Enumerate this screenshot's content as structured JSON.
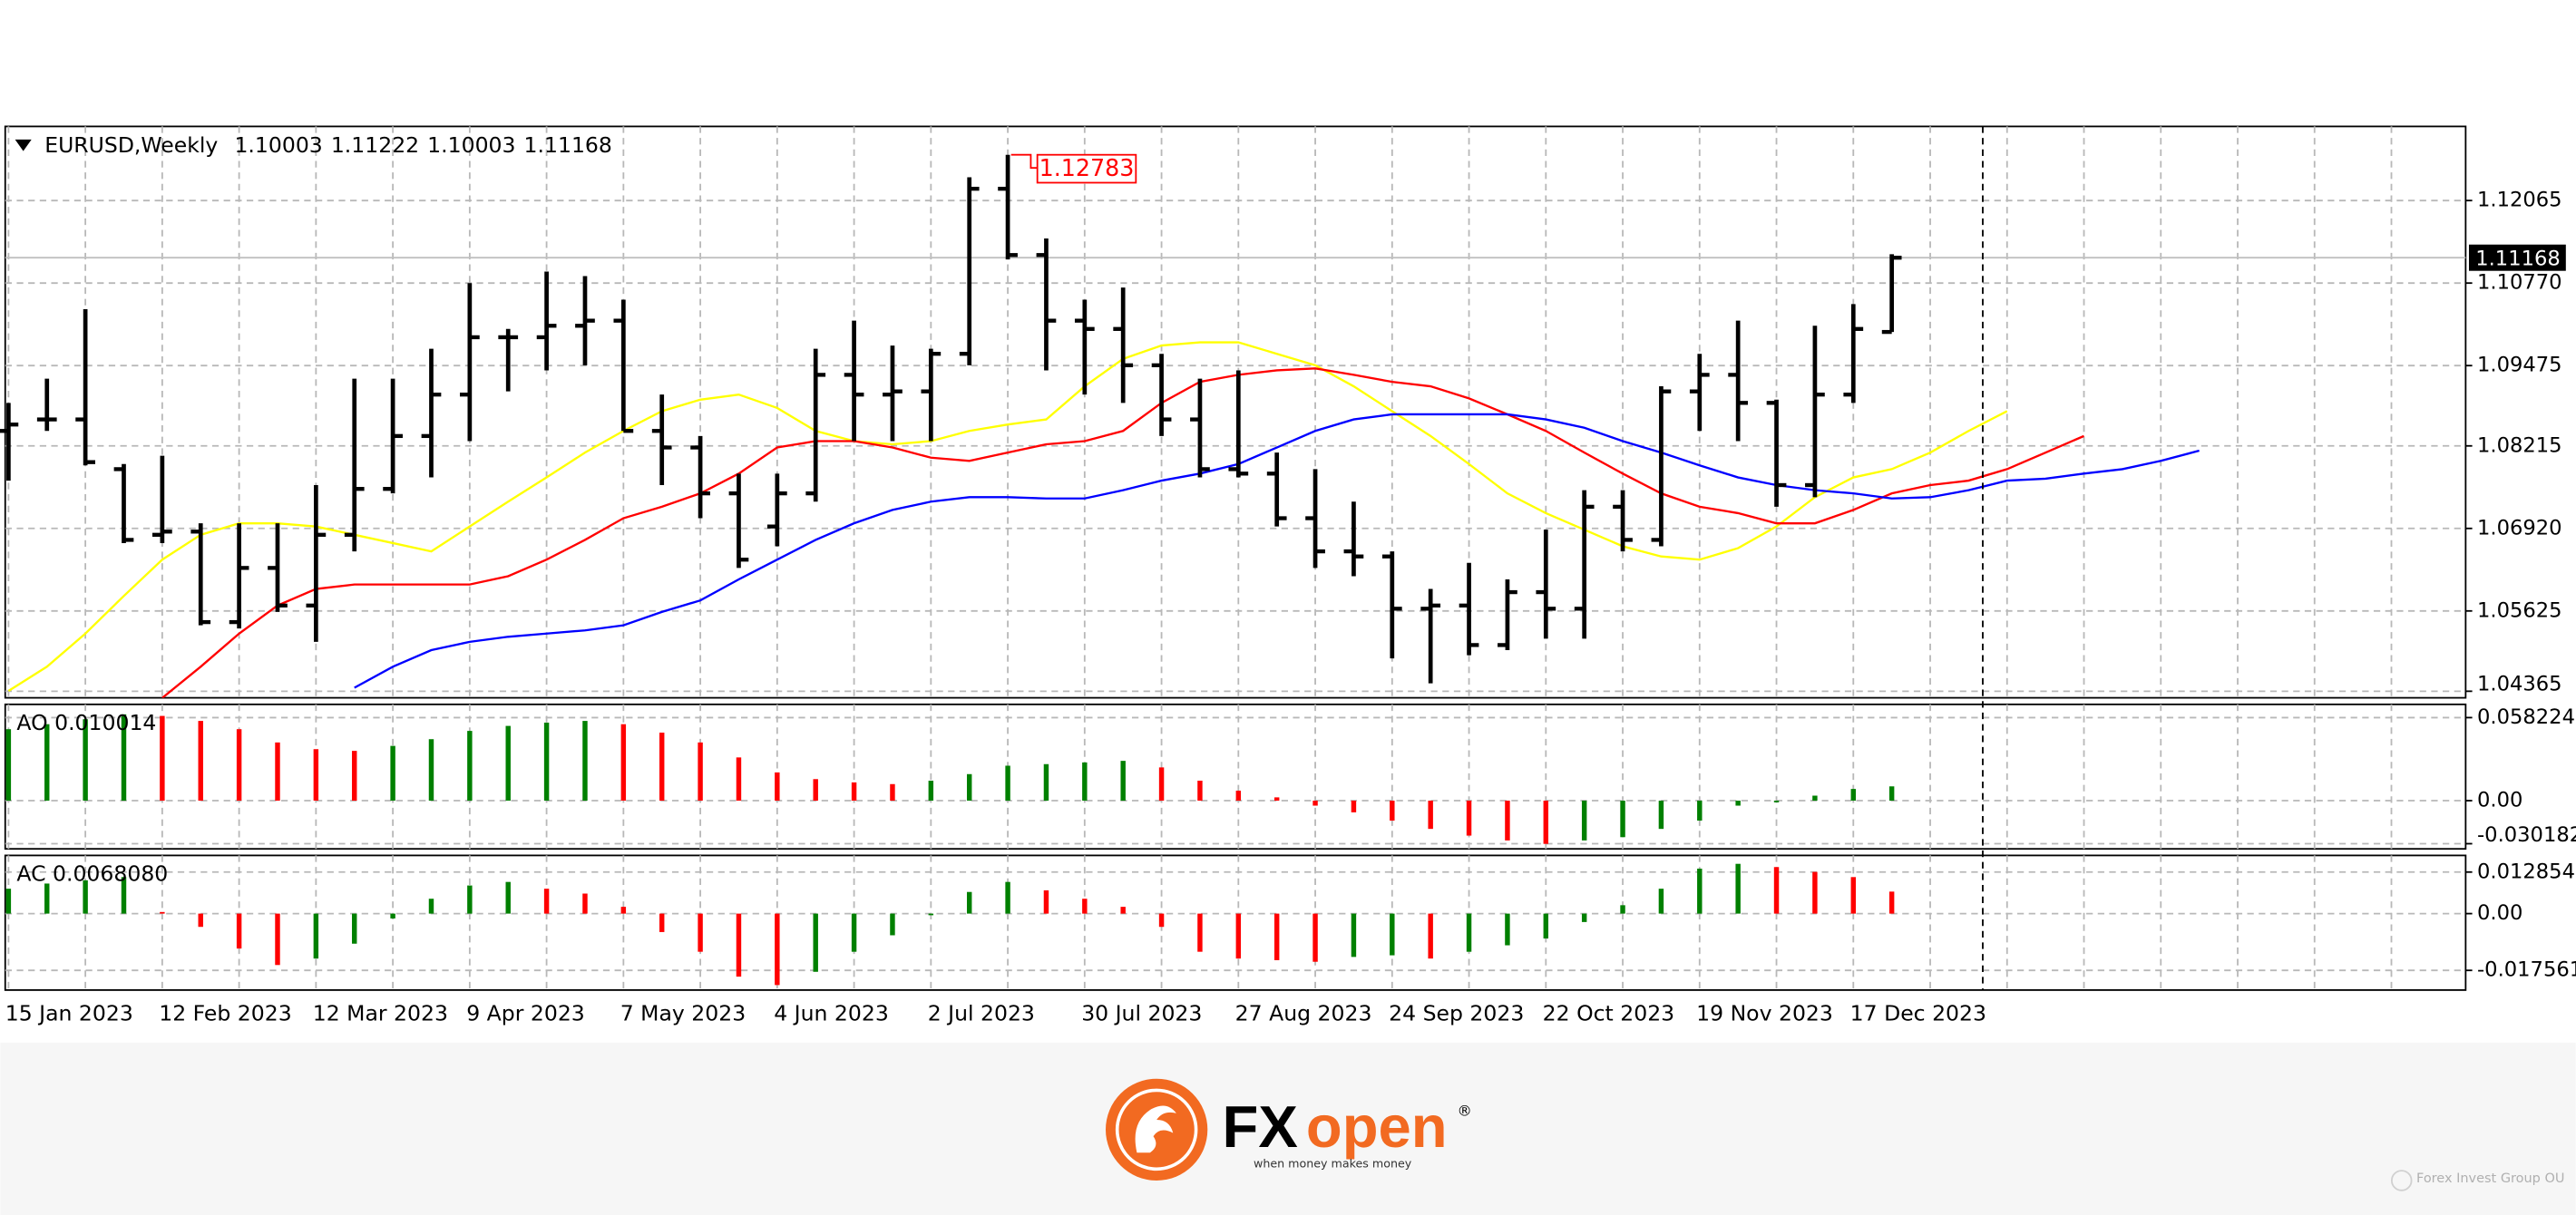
{
  "chart_data": [
    {
      "type": "ohlc",
      "title": "EURUSD,Weekly",
      "color": "#000000",
      "grid": true,
      "ylim": [
        1.04262,
        1.13228
      ],
      "yticks": [
        1.12065,
        {
          "value": 1.1077,
          "label": "1.10770"
        },
        1.09475,
        1.08215,
        {
          "value": 1.0692,
          "label": "1.06920"
        },
        1.05625,
        1.04365
      ],
      "categories": [
        "15 Jan 2023",
        null,
        null,
        null,
        "12 Feb 2023",
        null,
        null,
        null,
        "12 Mar 2023",
        null,
        null,
        null,
        "9 Apr 2023",
        null,
        null,
        null,
        "7 May 2023",
        null,
        null,
        null,
        "4 Jun 2023",
        null,
        null,
        null,
        "2 Jul 2023",
        null,
        null,
        null,
        "30 Jul 2023",
        null,
        null,
        null,
        "27 Aug 2023",
        null,
        null,
        null,
        "24 Sep 2023",
        null,
        null,
        null,
        "22 Oct 2023",
        null,
        null,
        null,
        "19 Nov 2023",
        null,
        null,
        null,
        "17 Dec 2023",
        null,
        null,
        null,
        null,
        null,
        null,
        null,
        null,
        null
      ],
      "open": [
        1.0845,
        1.0863,
        1.0863,
        1.0785,
        1.0682,
        1.0687,
        1.0545,
        1.063,
        1.0571,
        1.0682,
        1.0754,
        1.0837,
        1.0902,
        1.0992,
        1.0992,
        1.101,
        1.1018,
        1.0845,
        1.0819,
        1.0747,
        1.0695,
        1.0747,
        1.0933,
        1.0902,
        1.0907,
        1.0966,
        1.1225,
        1.1121,
        1.1018,
        1.1005,
        1.0948,
        1.0863,
        1.0785,
        1.0778,
        1.0708,
        1.0656,
        1.0648,
        1.0566,
        1.0571,
        1.0509,
        1.0592,
        1.0566,
        1.0726,
        1.0674,
        1.0907,
        1.0933,
        1.0889,
        1.076,
        1.0902,
        1.10003,
        null,
        null,
        null,
        null,
        null,
        null,
        null,
        null
      ],
      "high": [
        1.0889,
        1.0927,
        1.1036,
        1.0793,
        1.0806,
        1.07,
        1.07,
        1.07,
        1.076,
        1.0927,
        1.0927,
        1.0974,
        1.1077,
        1.1005,
        1.1095,
        1.1088,
        1.1051,
        1.0902,
        1.0837,
        1.0778,
        1.0778,
        1.0974,
        1.1018,
        1.0979,
        1.0974,
        1.1243,
        1.12783,
        1.1147,
        1.1051,
        1.107,
        1.0966,
        1.0927,
        1.094,
        1.0811,
        1.0785,
        1.0734,
        1.0656,
        1.0597,
        1.0638,
        1.0612,
        1.069,
        1.0752,
        1.0752,
        1.0915,
        1.0966,
        1.1018,
        1.0894,
        1.101,
        1.1044,
        1.11222,
        null,
        null,
        null,
        null,
        null,
        null,
        null,
        null
      ],
      "low": [
        1.0767,
        1.0845,
        1.0791,
        1.0669,
        1.0669,
        1.054,
        1.0535,
        1.0561,
        1.0514,
        1.0656,
        1.0747,
        1.0772,
        1.0829,
        1.0907,
        1.094,
        1.0948,
        1.0845,
        1.076,
        1.0708,
        1.063,
        1.0664,
        1.0734,
        1.0829,
        1.0829,
        1.0829,
        1.0948,
        1.1114,
        1.094,
        1.0902,
        1.0889,
        1.0837,
        1.0772,
        1.0772,
        1.0695,
        1.063,
        1.0617,
        1.0488,
        1.0449,
        1.0493,
        1.0501,
        1.0519,
        1.0519,
        1.0656,
        1.0664,
        1.0845,
        1.0829,
        1.0726,
        1.0741,
        1.0889,
        1.10003,
        null,
        null,
        null,
        null,
        null,
        null,
        null,
        null
      ],
      "close": [
        1.0855,
        1.0863,
        1.0796,
        1.0674,
        1.0687,
        1.0545,
        1.063,
        1.0571,
        1.0682,
        1.0754,
        1.0837,
        1.0902,
        1.0992,
        1.0992,
        1.101,
        1.1018,
        1.0845,
        1.0819,
        1.0747,
        1.0643,
        1.0747,
        1.0933,
        1.0902,
        1.0907,
        1.0966,
        1.1225,
        1.1121,
        1.1018,
        1.1005,
        1.0948,
        1.0863,
        1.0785,
        1.0778,
        1.0708,
        1.0656,
        1.0648,
        1.0566,
        1.0571,
        1.0509,
        1.0592,
        1.0566,
        1.0726,
        1.0674,
        1.0907,
        1.0933,
        1.0889,
        1.076,
        1.0902,
        1.1005,
        1.11168,
        null,
        null,
        null,
        null,
        null,
        null,
        null,
        null
      ],
      "lines": [
        {
          "color": "#ffff00",
          "values": [
            1.0437,
            1.0475,
            1.0527,
            1.0586,
            1.0643,
            1.0682,
            1.07,
            1.07,
            1.0695,
            1.0682,
            1.0669,
            1.0656,
            1.0695,
            1.0734,
            1.0772,
            1.0811,
            1.0845,
            1.0876,
            1.0894,
            1.0902,
            1.0881,
            1.0845,
            1.0829,
            1.0824,
            1.0829,
            1.0845,
            1.0855,
            1.0863,
            1.0915,
            1.0958,
            1.0979,
            1.0984,
            1.0984,
            1.0966,
            1.0948,
            1.0915,
            1.0876,
            1.0837,
            1.0793,
            1.0747,
            1.0716,
            1.069,
            1.0664,
            1.0648,
            1.0643,
            1.0661,
            1.0695,
            1.0741,
            1.0772,
            1.0785,
            1.0811,
            1.0845,
            1.0876,
            null,
            null,
            null,
            null,
            null
          ]
        },
        {
          "color": "#ff0000",
          "values": [
            null,
            null,
            null,
            null,
            1.0426,
            1.0475,
            1.0527,
            1.0571,
            1.0597,
            1.0604,
            1.0604,
            1.0604,
            1.0604,
            1.0617,
            1.0643,
            1.0674,
            1.0708,
            1.0726,
            1.0747,
            1.0778,
            1.0819,
            1.0829,
            1.0829,
            1.0819,
            1.0803,
            1.0798,
            1.0811,
            1.0824,
            1.0829,
            1.0845,
            1.0889,
            1.0922,
            1.0933,
            1.094,
            1.0943,
            1.0933,
            1.0922,
            1.0915,
            1.0896,
            1.0871,
            1.0845,
            1.0811,
            1.0778,
            1.0747,
            1.0726,
            1.0716,
            1.07,
            1.07,
            1.0721,
            1.0747,
            1.076,
            1.0767,
            1.0785,
            1.0811,
            1.0837,
            null,
            null,
            null
          ]
        },
        {
          "color": "#0000ff",
          "values": [
            null,
            null,
            null,
            null,
            null,
            null,
            null,
            null,
            null,
            1.0442,
            1.0475,
            1.0501,
            1.0514,
            1.0522,
            1.0527,
            1.0532,
            1.054,
            1.0561,
            1.0579,
            1.0612,
            1.0643,
            1.0674,
            1.07,
            1.0721,
            1.0734,
            1.0741,
            1.0741,
            1.0739,
            1.0739,
            1.0752,
            1.0767,
            1.0778,
            1.0793,
            1.0819,
            1.0845,
            1.0863,
            1.0871,
            1.0871,
            1.0871,
            1.0871,
            1.0863,
            1.085,
            1.0829,
            1.0811,
            1.0791,
            1.0772,
            1.076,
            1.0752,
            1.0747,
            1.0739,
            1.0741,
            1.0752,
            1.0767,
            1.077,
            1.0778,
            1.0785,
            1.0798,
            1.0814
          ]
        }
      ]
    },
    {
      "type": "bar",
      "label": "AO 0.010014",
      "up_color": "#008000",
      "down_color": "#ff0000",
      "grid": true,
      "ylim": [
        -0.0338,
        0.0675
      ],
      "yticks": [
        0.058224,
        {
          "value": 0,
          "label": "0.00"
        },
        -0.030182
      ],
      "values": [
        0.0501,
        0.0536,
        0.0571,
        0.0605,
        0.0594,
        0.0559,
        0.0501,
        0.0408,
        0.0361,
        0.0349,
        0.0384,
        0.0431,
        0.0489,
        0.0524,
        0.0547,
        0.0559,
        0.0536,
        0.0477,
        0.0408,
        0.0303,
        0.0198,
        0.0151,
        0.0128,
        0.0116,
        0.014,
        0.0186,
        0.0245,
        0.0256,
        0.0268,
        0.0279,
        0.0233,
        0.014,
        0.007,
        0.0023,
        -0.0035,
        -0.0082,
        -0.014,
        -0.0198,
        -0.0245,
        -0.0279,
        -0.0303,
        -0.0279,
        -0.0256,
        -0.0198,
        -0.014,
        -0.0035,
        -0.0012,
        0.0035,
        0.0082,
        0.010014
      ]
    },
    {
      "type": "bar",
      "label": "AC 0.0068080",
      "up_color": "#008000",
      "down_color": "#ff0000",
      "grid": true,
      "ylim": [
        -0.02365,
        0.018
      ],
      "yticks": [
        0.0128545,
        {
          "value": 0,
          "label": "0.00"
        },
        -0.017561
      ],
      "values": [
        0.0077,
        0.0093,
        0.0103,
        0.0113,
        0.0005,
        -0.0041,
        -0.0108,
        -0.0159,
        -0.0139,
        -0.0093,
        -0.0015,
        0.0046,
        0.0087,
        0.0098,
        0.0077,
        0.0062,
        0.0021,
        -0.0057,
        -0.0118,
        -0.0195,
        -0.0221,
        -0.018,
        -0.0118,
        -0.0067,
        -0.0005,
        0.0067,
        0.0098,
        0.0072,
        0.0046,
        0.0021,
        -0.0041,
        -0.0118,
        -0.0139,
        -0.0144,
        -0.0149,
        -0.0134,
        -0.0129,
        -0.0139,
        -0.0118,
        -0.0098,
        -0.0077,
        -0.0026,
        0.0026,
        0.0077,
        0.0139,
        0.0154,
        0.0144,
        0.0129,
        0.0113,
        0.006808
      ]
    }
  ],
  "logo": {
    "fx": "FX",
    "open": "open",
    "reg": "®",
    "tagline": "when money makes money"
  },
  "watermark": "Forex Invest Group OU"
}
